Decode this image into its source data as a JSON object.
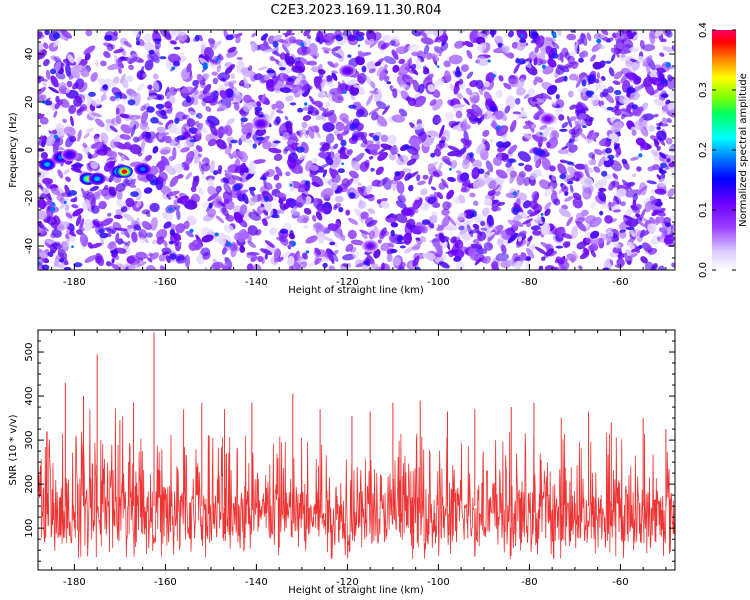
{
  "figure_title": "C2E3.2023.169.11.30.R04",
  "chart_data": [
    {
      "type": "heatmap",
      "xlabel": "Height of straight line (km)",
      "ylabel": "Frequency (Hz)",
      "xlim": [
        -188,
        -48
      ],
      "ylim": [
        -50,
        50
      ],
      "x_ticks": [
        -180,
        -160,
        -140,
        -120,
        -100,
        -80,
        -60
      ],
      "y_ticks": [
        -40,
        -20,
        0,
        20,
        40
      ],
      "colorbar": {
        "label": "Normalized spectral amplitude",
        "range": [
          0.0,
          0.4
        ],
        "ticks": [
          "0.0",
          "0.1",
          "0.2",
          "0.3",
          "0.4"
        ]
      },
      "hotspots": [
        {
          "x": -186,
          "y": -6,
          "value": 0.22
        },
        {
          "x": -183,
          "y": -3,
          "value": 0.2
        },
        {
          "x": -181,
          "y": -2,
          "value": 0.14
        },
        {
          "x": -177,
          "y": -12,
          "value": 0.3
        },
        {
          "x": -175,
          "y": -12,
          "value": 0.22
        },
        {
          "x": -170,
          "y": -9,
          "value": 0.32
        },
        {
          "x": -169,
          "y": -9,
          "value": 0.4
        },
        {
          "x": -165,
          "y": -8,
          "value": 0.2
        },
        {
          "x": -139,
          "y": 11,
          "value": 0.12
        },
        {
          "x": -120,
          "y": 33,
          "value": 0.12
        },
        {
          "x": -115,
          "y": -40,
          "value": 0.1
        },
        {
          "x": -76,
          "y": 13,
          "value": 0.1
        }
      ]
    },
    {
      "type": "line",
      "xlabel": "Height of straight line (km)",
      "ylabel": "SNR (10 * v/v)",
      "xlim": [
        -188,
        -48
      ],
      "ylim": [
        5,
        550
      ],
      "x_ticks": [
        -180,
        -160,
        -140,
        -120,
        -100,
        -80,
        -60
      ],
      "y_ticks": [
        100,
        200,
        300,
        400,
        500
      ],
      "series": [
        {
          "color": "#ee3333",
          "baseline_mean": 125,
          "typical_range": [
            30,
            240
          ]
        }
      ],
      "peaks": [
        {
          "x": -186,
          "y": 320
        },
        {
          "x": -182,
          "y": 430
        },
        {
          "x": -178,
          "y": 400
        },
        {
          "x": -175,
          "y": 495
        },
        {
          "x": -170,
          "y": 345
        },
        {
          "x": -167,
          "y": 385
        },
        {
          "x": -162.5,
          "y": 545
        },
        {
          "x": -156,
          "y": 370
        },
        {
          "x": -152,
          "y": 385
        },
        {
          "x": -147,
          "y": 370
        },
        {
          "x": -141,
          "y": 385
        },
        {
          "x": -132,
          "y": 405
        },
        {
          "x": -126,
          "y": 370
        },
        {
          "x": -119,
          "y": 355
        },
        {
          "x": -115,
          "y": 365
        },
        {
          "x": -110,
          "y": 385
        },
        {
          "x": -104,
          "y": 390
        },
        {
          "x": -98,
          "y": 365
        },
        {
          "x": -92,
          "y": 370
        },
        {
          "x": -84,
          "y": 375
        },
        {
          "x": -79,
          "y": 385
        },
        {
          "x": -73,
          "y": 350
        },
        {
          "x": -67,
          "y": 365
        },
        {
          "x": -62,
          "y": 340
        },
        {
          "x": -55,
          "y": 350
        },
        {
          "x": -50,
          "y": 325
        }
      ]
    }
  ]
}
